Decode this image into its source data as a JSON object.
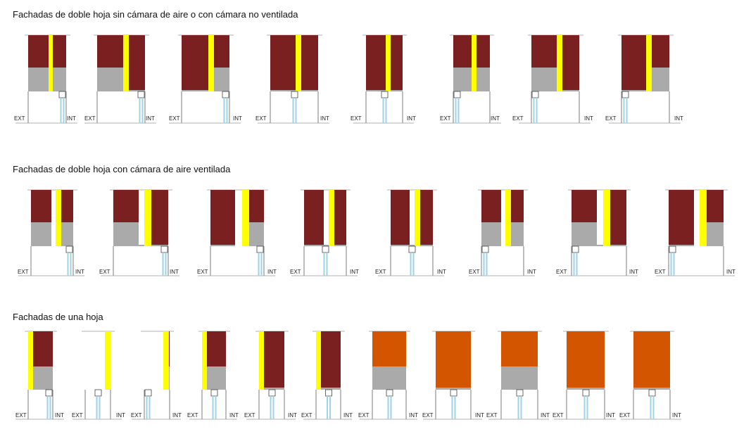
{
  "sections": [
    {
      "title": "Fachadas de doble hoja sin cámara de aire o con cámara no ventilada",
      "ext_label": "EXT",
      "int_label": "INT",
      "items": [
        {
          "variant": "frame-at-interior-with-ledge"
        },
        {
          "variant": "frame-at-interior-with-ledge"
        },
        {
          "variant": "frame-at-interior-with-ledge"
        },
        {
          "variant": "frame-at-interior-with-ledge"
        },
        {
          "variant": "frame-centered"
        },
        {
          "variant": "frame-centered"
        },
        {
          "variant": "frame-at-exterior"
        },
        {
          "variant": "frame-at-exterior"
        }
      ]
    },
    {
      "title": "Fachadas de doble hoja con cámara de aire ventilada",
      "ext_label": "EXT",
      "int_label": "INT",
      "items": [
        {
          "variant": "frame-at-interior-with-ledge"
        },
        {
          "variant": "frame-at-interior-with-ledge"
        },
        {
          "variant": "frame-at-interior-with-ledge"
        },
        {
          "variant": "frame-centered"
        },
        {
          "variant": "frame-centered"
        },
        {
          "variant": "frame-centered"
        },
        {
          "variant": "frame-at-exterior"
        },
        {
          "variant": "frame-at-exterior"
        }
      ]
    },
    {
      "title": "Fachadas de una hoja",
      "ext_label": "EXT",
      "int_label": "INT",
      "items": [
        {
          "variant": "frame-at-interior-with-ledge"
        },
        {
          "variant": "frame-at-interior-with-ledge"
        },
        {
          "variant": "frame-at-interior-with-ledge"
        },
        {
          "variant": "frame-centered"
        },
        {
          "variant": "frame-centered"
        },
        {
          "variant": "frame-centered"
        },
        {
          "variant": "frame-centered"
        },
        {
          "variant": "frame-centered"
        },
        {
          "variant": "frame-centered"
        },
        {
          "variant": "frame-centered"
        },
        {
          "variant": "frame-at-exterior"
        }
      ]
    }
  ],
  "colors": {
    "brick": "#7a2020",
    "insulation": "#ffff00",
    "lintel": "#aaaaaa",
    "orange_block": "#d45500",
    "glass": "#9fd3e6",
    "outline": "#444444"
  }
}
